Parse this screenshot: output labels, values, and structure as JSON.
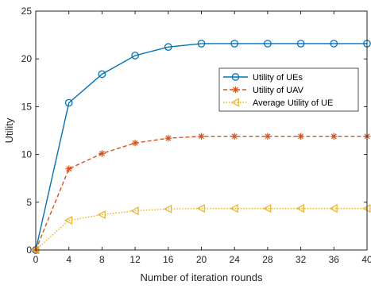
{
  "chart_data": {
    "type": "line",
    "xlabel": "Number of iteration rounds",
    "ylabel": "Utility",
    "x": [
      0,
      4,
      8,
      12,
      16,
      20,
      24,
      28,
      32,
      36,
      40
    ],
    "xlim": [
      0,
      40
    ],
    "ylim": [
      0,
      25
    ],
    "xticks": [
      0,
      4,
      8,
      12,
      16,
      20,
      24,
      28,
      32,
      36,
      40
    ],
    "yticks": [
      0,
      5,
      10,
      15,
      20,
      25
    ],
    "grid": false,
    "legend_position": "right",
    "series": [
      {
        "name": "Utility of UEs",
        "values": [
          0,
          15.4,
          18.4,
          20.35,
          21.25,
          21.6,
          21.6,
          21.6,
          21.6,
          21.6,
          21.6
        ],
        "color": "#0072BD",
        "line_style": "solid",
        "marker": "circle"
      },
      {
        "name": "Utility of UAV",
        "values": [
          0,
          8.5,
          10.1,
          11.2,
          11.7,
          11.9,
          11.9,
          11.9,
          11.9,
          11.9,
          11.9
        ],
        "color": "#D95319",
        "line_style": "dashed",
        "marker": "asterisk"
      },
      {
        "name": "Average Utility of UE",
        "values": [
          0,
          3.1,
          3.7,
          4.1,
          4.3,
          4.35,
          4.35,
          4.35,
          4.35,
          4.35,
          4.35
        ],
        "color": "#EDB120",
        "line_style": "dotted",
        "marker": "triangle-left"
      }
    ]
  }
}
